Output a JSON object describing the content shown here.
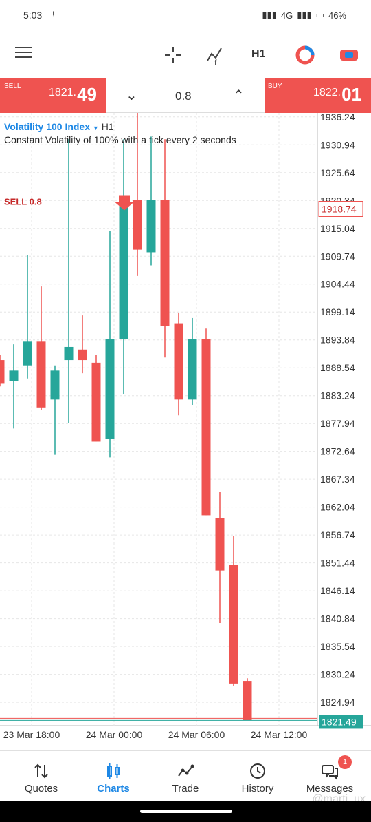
{
  "status": {
    "time": "5:03",
    "excl": "!",
    "network": "4G",
    "battery": "46%"
  },
  "toolbar": {
    "timeframe": "H1"
  },
  "trade": {
    "sell_label": "SELL",
    "sell_price_small": "1821.",
    "sell_price_big": "49",
    "buy_label": "BUY",
    "buy_price_small": "1822.",
    "buy_price_big": "01",
    "lot": "0.8",
    "lot_down": "⌄",
    "lot_up": "⌃"
  },
  "chart": {
    "symbol": "Volatility 100 Index",
    "timeframe": "H1",
    "description": "Constant Volatility of 100% with a tick every 2 seconds",
    "position_label": "SELL 0.8",
    "position_price_tag": "1918.74",
    "current_price_tag": "1821.49"
  },
  "nav": {
    "quotes": "Quotes",
    "charts": "Charts",
    "trade": "Trade",
    "history": "History",
    "messages": "Messages",
    "messages_badge": "1"
  },
  "watermark": "@marti_ux",
  "colors": {
    "bull": "#26a69a",
    "bear": "#ef5350",
    "accent": "#1e88e5"
  },
  "chart_data": {
    "type": "candlestick",
    "y_ticks": [
      "1936.24",
      "1930.94",
      "1925.64",
      "1920.34",
      "1915.04",
      "1909.74",
      "1904.44",
      "1899.14",
      "1893.84",
      "1888.54",
      "1883.24",
      "1877.94",
      "1872.64",
      "1867.34",
      "1862.04",
      "1856.74",
      "1851.44",
      "1846.14",
      "1840.84",
      "1835.54",
      "1830.24",
      "1824.94"
    ],
    "x_ticks": [
      "23 Mar 18:00",
      "24 Mar 00:00",
      "24 Mar 06:00",
      "24 Mar 12:00"
    ],
    "ylim": [
      1820.5,
      1937.0
    ],
    "candles": [
      {
        "o": 1890.0,
        "h": 1891.0,
        "l": 1885.0,
        "c": 1885.5
      },
      {
        "o": 1886.0,
        "h": 1893.0,
        "l": 1877.0,
        "c": 1888.0
      },
      {
        "o": 1889.0,
        "h": 1910.0,
        "l": 1886.5,
        "c": 1893.5
      },
      {
        "o": 1893.5,
        "h": 1904.0,
        "l": 1880.5,
        "c": 1881.0
      },
      {
        "o": 1882.5,
        "h": 1889.0,
        "l": 1872.0,
        "c": 1888.0
      },
      {
        "o": 1890.0,
        "h": 1932.0,
        "l": 1878.0,
        "c": 1892.5
      },
      {
        "o": 1892.0,
        "h": 1898.5,
        "l": 1887.5,
        "c": 1890.0
      },
      {
        "o": 1889.5,
        "h": 1891.0,
        "l": 1874.5,
        "c": 1874.5
      },
      {
        "o": 1875.0,
        "h": 1914.5,
        "l": 1871.5,
        "c": 1894.0
      },
      {
        "o": 1894.0,
        "h": 1932.0,
        "l": 1883.5,
        "c": 1920.5
      },
      {
        "o": 1920.5,
        "h": 1938.0,
        "l": 1906.0,
        "c": 1911.0
      },
      {
        "o": 1910.5,
        "h": 1932.5,
        "l": 1908.0,
        "c": 1920.5
      },
      {
        "o": 1920.5,
        "h": 1932.0,
        "l": 1890.5,
        "c": 1896.5
      },
      {
        "o": 1897.0,
        "h": 1899.0,
        "l": 1879.5,
        "c": 1882.5
      },
      {
        "o": 1882.5,
        "h": 1898.0,
        "l": 1881.5,
        "c": 1894.0
      },
      {
        "o": 1894.0,
        "h": 1896.0,
        "l": 1860.5,
        "c": 1860.5
      },
      {
        "o": 1860.0,
        "h": 1865.0,
        "l": 1840.0,
        "c": 1850.0
      },
      {
        "o": 1851.0,
        "h": 1856.5,
        "l": 1828.0,
        "c": 1828.5
      },
      {
        "o": 1829.0,
        "h": 1829.5,
        "l": 1821.5,
        "c": 1821.5
      }
    ],
    "position_price": 1918.74,
    "current_price": 1821.49
  }
}
